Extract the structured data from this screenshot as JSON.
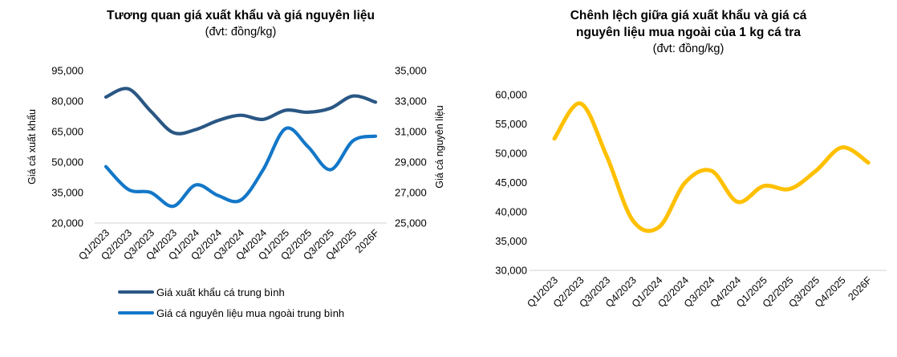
{
  "page": {
    "background": "#FFFFFF",
    "axis_line_color": "#D9D9D9",
    "text_color": "#000000"
  },
  "chart_data": [
    {
      "type": "line",
      "title": "Tương quan giá xuất khẩu và giá nguyên liệu",
      "title_lines": [
        "Tương quan giá xuất khẩu và giá nguyên liệu"
      ],
      "subtitle": "(đvt: đồng/kg)",
      "categories": [
        "Q1/2023",
        "Q2/2023",
        "Q3/2023",
        "Q4/2023",
        "Q1/2024",
        "Q2/2024",
        "Q3/2024",
        "Q4/2024",
        "Q1/2025",
        "Q2/2025",
        "Q3/2025",
        "Q4/2025",
        "2026F"
      ],
      "axes": {
        "left": {
          "label": "Giá cá xuất khẩu",
          "min": 20000,
          "max": 95000,
          "step": 15000,
          "ticks": [
            20000,
            35000,
            50000,
            65000,
            80000,
            95000
          ]
        },
        "right": {
          "label": "Giá cá nguyên liệu",
          "min": 25000,
          "max": 35000,
          "step": 2000,
          "ticks": [
            25000,
            27000,
            29000,
            31000,
            33000,
            35000
          ]
        }
      },
      "grid": false,
      "legend_position": "bottom",
      "series": [
        {
          "name": "Giá xuất khẩu cá trung bình",
          "axis": "left",
          "color": "#2A5784",
          "values": [
            82000,
            86000,
            75000,
            64500,
            66000,
            70500,
            73000,
            71000,
            75500,
            74500,
            76500,
            82500,
            79500
          ]
        },
        {
          "name": "Giá cá nguyên liệu mua ngoài trung bình",
          "axis": "right",
          "color": "#1377C8",
          "values": [
            28700,
            27200,
            27000,
            26100,
            27500,
            26800,
            26500,
            28500,
            31200,
            30000,
            28500,
            30400,
            30700
          ]
        }
      ]
    },
    {
      "type": "line",
      "title": "Chênh lệch giữa giá xuất khẩu và giá cá nguyên liệu mua ngoài của 1 kg cá tra",
      "title_lines": [
        "Chênh lệch giữa giá xuất khẩu và giá cá",
        "nguyên liệu mua ngoài của 1 kg cá tra"
      ],
      "subtitle": "(đvt: đồng/kg)",
      "categories": [
        "Q1/2023",
        "Q2/2023",
        "Q3/2023",
        "Q4/2023",
        "Q1/2024",
        "Q2/2024",
        "Q3/2024",
        "Q4/2024",
        "Q1/2025",
        "Q2/2025",
        "Q3/2025",
        "Q4/2025",
        "2026F"
      ],
      "axes": {
        "left": {
          "label": "",
          "min": 30000,
          "max": 60000,
          "step": 5000,
          "ticks": [
            30000,
            35000,
            40000,
            45000,
            50000,
            55000,
            60000
          ]
        }
      },
      "grid": false,
      "legend_position": "none",
      "series": [
        {
          "name": "Chênh lệch giá xuất khẩu và giá cá nguyên liệu",
          "axis": "left",
          "color": "#FFC000",
          "values": [
            52500,
            58500,
            49500,
            38500,
            37400,
            45000,
            47000,
            41700,
            44400,
            43900,
            47000,
            51000,
            48400
          ]
        }
      ]
    }
  ]
}
